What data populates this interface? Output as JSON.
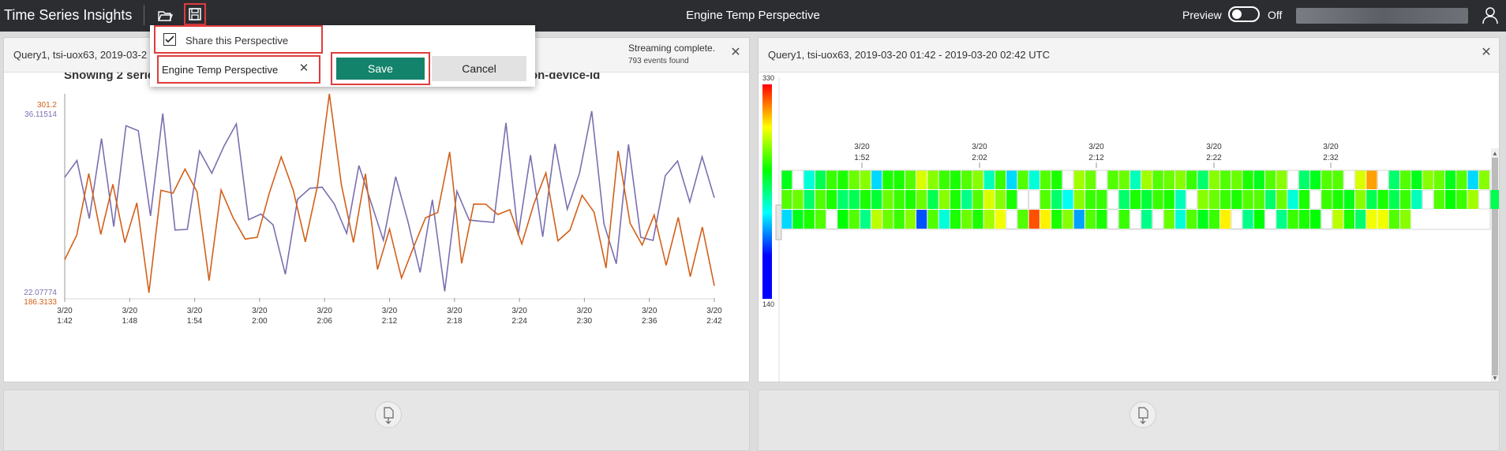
{
  "app": {
    "title": "Time Series Insights",
    "perspective_title": "Engine Temp Perspective"
  },
  "topbar": {
    "preview_label": "Preview",
    "preview_state": "Off"
  },
  "icons": {
    "open": "folder-open-icon",
    "save": "floppy-disk-icon",
    "user": "user-icon",
    "close": "close-icon"
  },
  "popup": {
    "share_label": "Share this Perspective",
    "share_checked": true,
    "name_value": "Engine Temp Perspective",
    "save_label": "Save",
    "cancel_label": "Cancel"
  },
  "colors": {
    "accent": "#13846b",
    "highlight": "#e03c3c",
    "series_purple": "#7b6faf",
    "series_orange": "#d2601a"
  },
  "left_panel": {
    "title": "Query1, tsi-uox63, 2019-03-2",
    "status": "Streaming complete.",
    "events": "793 events found",
    "chart_title": "Showing 2 series of 2 total from averageenginetemperature, speed/iothub-connection-device-id"
  },
  "right_panel": {
    "title": "Query1, tsi-uox63, 2019-03-20 01:42  -  2019-03-20 02:42 UTC",
    "legend_max": "330",
    "legend_min": "140"
  },
  "chart_data": [
    {
      "type": "line",
      "title": "Showing 2 series of 2 total from averageenginetemperature, speed/iothub-connection-device-id",
      "x_ticks": [
        {
          "line1": "3/20",
          "line2": "1:42"
        },
        {
          "line1": "3/20",
          "line2": "1:48"
        },
        {
          "line1": "3/20",
          "line2": "1:54"
        },
        {
          "line1": "3/20",
          "line2": "2:00"
        },
        {
          "line1": "3/20",
          "line2": "2:06"
        },
        {
          "line1": "3/20",
          "line2": "2:12"
        },
        {
          "line1": "3/20",
          "line2": "2:18"
        },
        {
          "line1": "3/20",
          "line2": "2:24"
        },
        {
          "line1": "3/20",
          "line2": "2:30"
        },
        {
          "line1": "3/20",
          "line2": "2:36"
        },
        {
          "line1": "3/20",
          "line2": "2:42"
        }
      ],
      "series": [
        {
          "color": "#7b6faf",
          "ymin": 22.07774,
          "ymax": 36.11514,
          "ymin_label": "22.07774",
          "ymax_label": "36.11514",
          "values": [
            30.38,
            31.53,
            27.54,
            33.04,
            26.99,
            33.92,
            33.58,
            27.72,
            34.76,
            26.75,
            26.8,
            32.19,
            30.66,
            32.53,
            34.05,
            27.46,
            27.85,
            27.11,
            23.71,
            28.87,
            29.62,
            29.7,
            28.54,
            26.52,
            31.19,
            28.63,
            26.05,
            30.42,
            27.34,
            23.84,
            28.83,
            22.54,
            29.42,
            27.44,
            27.35,
            27.28,
            34.12,
            26.4,
            31.9,
            26.29,
            32.67,
            28.18,
            30.66,
            34.93,
            27.17,
            24.43,
            32.64,
            26.25,
            26.04,
            30.49,
            31.5,
            28.68,
            31.79,
            28.97
          ]
        },
        {
          "color": "#d2601a",
          "ymin": 186.3133,
          "ymax": 301.2,
          "ymin_label": "186.3133",
          "ymax_label": "301.2",
          "values": [
            207.9,
            221.6,
            256.3,
            222.1,
            250.3,
            217.5,
            239.8,
            189.3,
            246.9,
            245.3,
            258.9,
            246.1,
            196.1,
            247.1,
            231.4,
            219.5,
            220.5,
            245.2,
            265.8,
            246.8,
            217.9,
            249.2,
            301.2,
            250.1,
            217.6,
            256.2,
            202.4,
            225.1,
            197.6,
            215.0,
            231.5,
            234.4,
            268.5,
            205.8,
            239.2,
            239.1,
            233.3,
            236.0,
            216.8,
            239.3,
            256.7,
            218.5,
            224.5,
            244.1,
            234.7,
            203.2,
            269.1,
            228.4,
            216.1,
            233.0,
            204.7,
            231.7,
            198.4,
            226.3,
            193.2
          ]
        }
      ]
    },
    {
      "type": "heatmap",
      "x_ticks": [
        {
          "line1": "3/20",
          "line2": "1:52"
        },
        {
          "line1": "3/20",
          "line2": "2:02"
        },
        {
          "line1": "3/20",
          "line2": "2:12"
        },
        {
          "line1": "3/20",
          "line2": "2:22"
        },
        {
          "line1": "3/20",
          "line2": "2:32"
        }
      ],
      "color_min": 140,
      "color_max": 330,
      "rows": [
        [
          230,
          null,
          195,
          220,
          245,
          240,
          255,
          260,
          180,
          240,
          240,
          250,
          275,
          260,
          245,
          240,
          250,
          260,
          200,
          245,
          180,
          250,
          195,
          250,
          240,
          null,
          265,
          255,
          null,
          250,
          255,
          200,
          265,
          250,
          255,
          260,
          245,
          215,
          260,
          250,
          255,
          240,
          230,
          250,
          260,
          null,
          215,
          230,
          250,
          250,
          null,
          275,
          300,
          null,
          215,
          250,
          230,
          260,
          255,
          230,
          250,
          180,
          260
        ],
        [
          250,
          255,
          215,
          250,
          240,
          215,
          220,
          240,
          225,
          255,
          245,
          240,
          255,
          220,
          260,
          240,
          210,
          250,
          275,
          260,
          240,
          null,
          null,
          250,
          215,
          190,
          260,
          245,
          245,
          null,
          215,
          240,
          225,
          245,
          240,
          200,
          null,
          260,
          255,
          245,
          240,
          250,
          250,
          215,
          255,
          195,
          240,
          null,
          245,
          240,
          230,
          260,
          220,
          240,
          220,
          245,
          200,
          null,
          250,
          235,
          245,
          265,
          null,
          220
        ],
        [
          180,
          230,
          240,
          250,
          null,
          235,
          250,
          210,
          270,
          255,
          245,
          260,
          155,
          250,
          195,
          240,
          255,
          240,
          265,
          280,
          null,
          250,
          315,
          285,
          240,
          260,
          170,
          250,
          240,
          null,
          245,
          null,
          210,
          null,
          255,
          195,
          250,
          230,
          245,
          285,
          null,
          210,
          235,
          null,
          210,
          245,
          240,
          235,
          null,
          270,
          240,
          215,
          280,
          280,
          250,
          260
        ]
      ]
    }
  ]
}
